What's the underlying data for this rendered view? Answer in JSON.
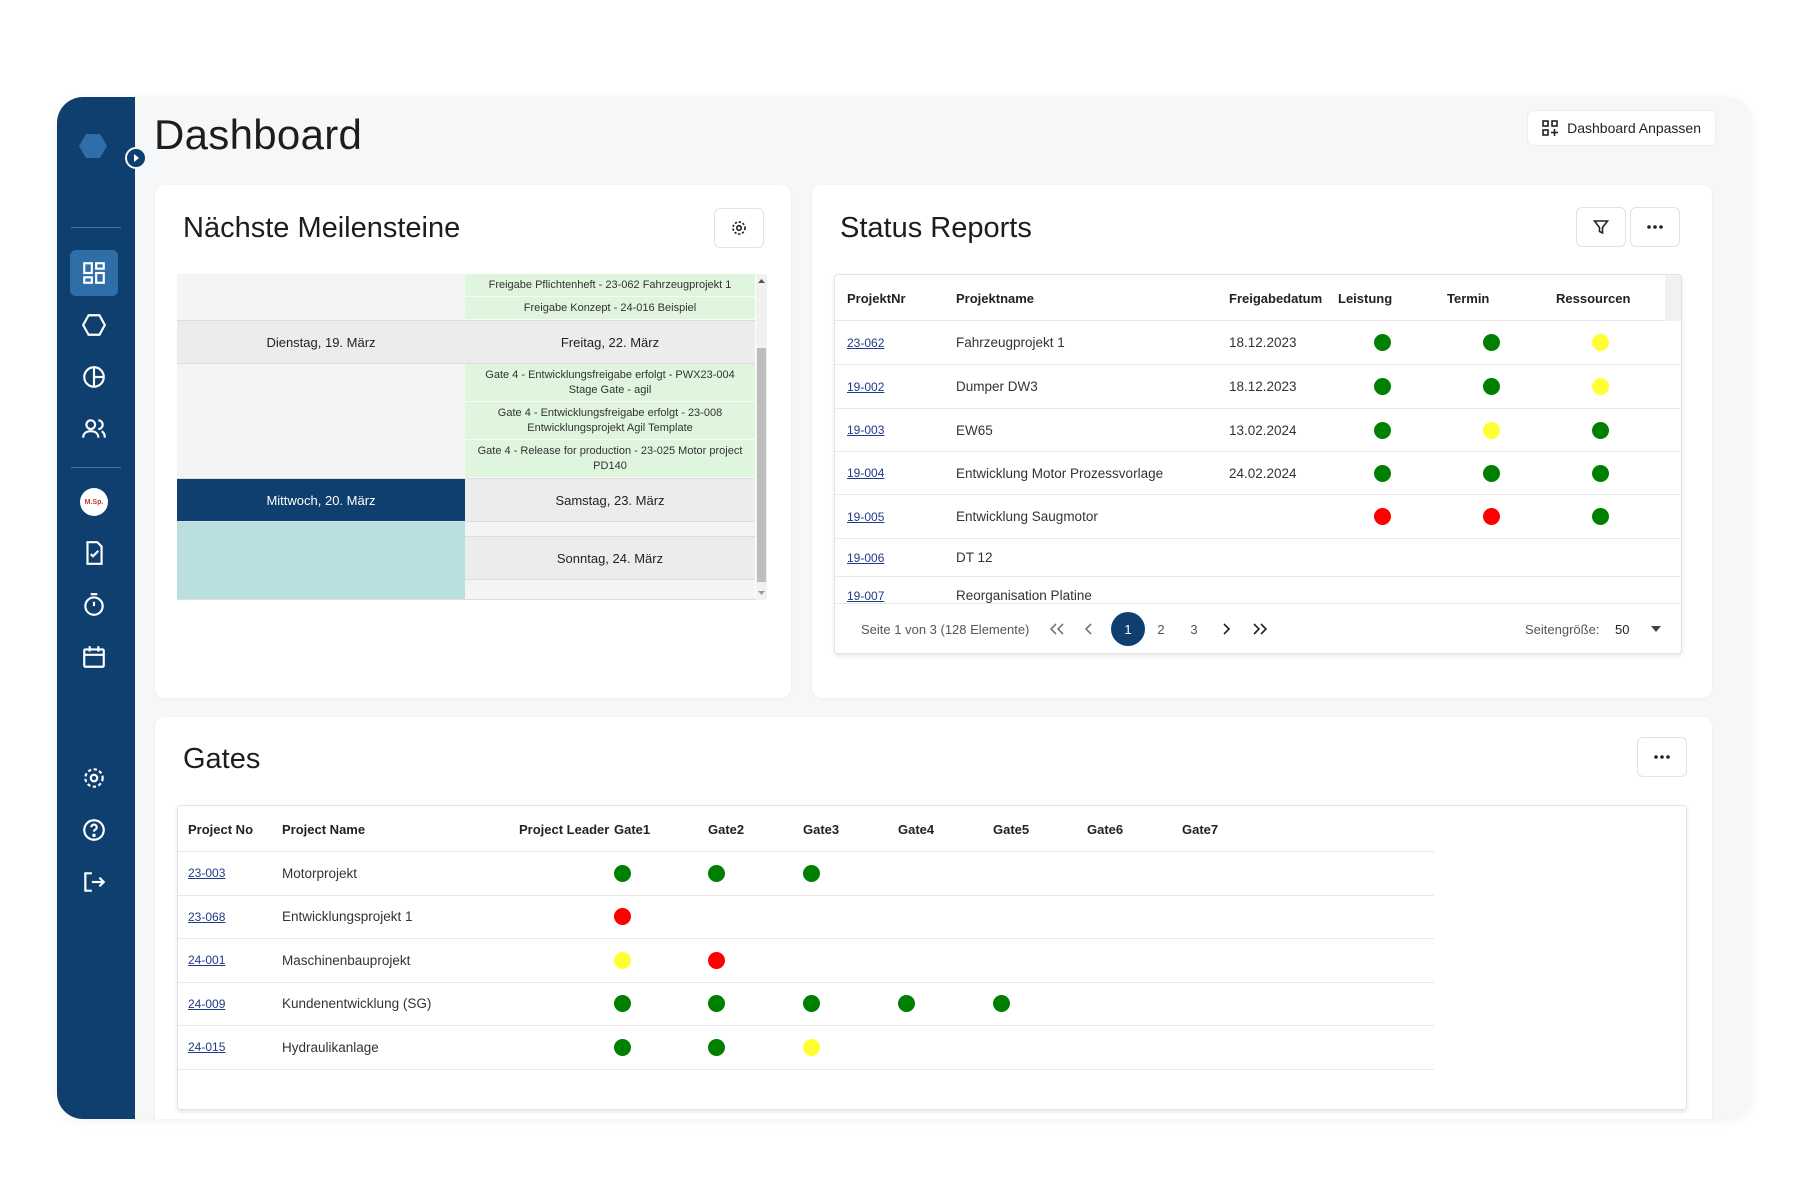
{
  "colors": {
    "green": "#008000",
    "red": "#ff0000",
    "yellow": "#ffff33",
    "navy": "#0e3f6f"
  },
  "header": {
    "title": "Dashboard",
    "customize_label": "Dashboard Anpassen"
  },
  "sidebar": {
    "items": [
      {
        "icon": "dashboard-icon",
        "active": true
      },
      {
        "icon": "hexagon-icon"
      },
      {
        "icon": "pie-chart-icon"
      },
      {
        "icon": "users-icon"
      },
      {
        "icon": "avatar"
      },
      {
        "icon": "document-check-icon"
      },
      {
        "icon": "stopwatch-icon"
      },
      {
        "icon": "calendar-icon"
      },
      {
        "icon": "gear-icon"
      },
      {
        "icon": "help-icon"
      },
      {
        "icon": "logout-icon"
      }
    ],
    "avatar_text": "M.Sp."
  },
  "milestones": {
    "title": "Nächste Meilensteine",
    "top_events": [
      "Freigabe Pflichtenheft - 23-062 Fahrzeugprojekt 1",
      "Freigabe Konzept - 24-016 Beispiel"
    ],
    "days": {
      "tue": "Dienstag, 19. März",
      "fri": "Freitag, 22. März",
      "wed": "Mittwoch, 20. März",
      "sat": "Samstag, 23. März",
      "sun": "Sonntag, 24. März"
    },
    "fri_events": [
      "Gate 4 - Entwicklungsfreigabe erfolgt - PWX23-004 Stage Gate - agil",
      "Gate 4 - Entwicklungsfreigabe erfolgt - 23-008 Entwicklungsprojekt Agil Template",
      "Gate 4 - Release for production - 23-025 Motor project PD140"
    ]
  },
  "status_reports": {
    "title": "Status Reports",
    "columns": [
      "ProjektNr",
      "Projektname",
      "Freigabedatum",
      "Leistung",
      "Termin",
      "Ressourcen"
    ],
    "rows": [
      {
        "nr": "23-062",
        "name": "Fahrzeugprojekt 1",
        "date": "18.12.2023",
        "leistung": "green",
        "termin": "green",
        "ressourcen": "yellow"
      },
      {
        "nr": "19-002",
        "name": "Dumper DW3",
        "date": "18.12.2023",
        "leistung": "green",
        "termin": "green",
        "ressourcen": "yellow"
      },
      {
        "nr": "19-003",
        "name": "EW65",
        "date": "13.02.2024",
        "leistung": "green",
        "termin": "yellow",
        "ressourcen": "green"
      },
      {
        "nr": "19-004",
        "name": "Entwicklung Motor Prozessvorlage",
        "date": "24.02.2024",
        "leistung": "green",
        "termin": "green",
        "ressourcen": "green"
      },
      {
        "nr": "19-005",
        "name": "Entwicklung Saugmotor",
        "date": "",
        "leistung": "red",
        "termin": "red",
        "ressourcen": "green"
      },
      {
        "nr": "19-006",
        "name": "DT 12",
        "date": "",
        "leistung": "",
        "termin": "",
        "ressourcen": ""
      },
      {
        "nr": "19-007",
        "name": "Reorganisation Platine",
        "date": "",
        "leistung": "",
        "termin": "",
        "ressourcen": ""
      }
    ],
    "pager": {
      "summary": "Seite 1 von 3 (128 Elemente)",
      "pages": [
        "1",
        "2",
        "3"
      ],
      "current": "1",
      "page_size_label": "Seitengröße:",
      "page_size": "50"
    }
  },
  "gates": {
    "title": "Gates",
    "columns": [
      "Project No",
      "Project Name",
      "Project Leader",
      "Gate1",
      "Gate2",
      "Gate3",
      "Gate4",
      "Gate5",
      "Gate6",
      "Gate7"
    ],
    "rows": [
      {
        "no": "23-003",
        "name": "Motorprojekt",
        "leader": "",
        "gates": [
          "green",
          "green",
          "green",
          "",
          "",
          "",
          ""
        ]
      },
      {
        "no": "23-068",
        "name": "Entwicklungsprojekt 1",
        "leader": "",
        "gates": [
          "red",
          "",
          "",
          "",
          "",
          "",
          ""
        ]
      },
      {
        "no": "24-001",
        "name": "Maschinenbauprojekt",
        "leader": "",
        "gates": [
          "yellow",
          "red",
          "",
          "",
          "",
          "",
          ""
        ]
      },
      {
        "no": "24-009",
        "name": "Kundenentwicklung (SG)",
        "leader": "",
        "gates": [
          "green",
          "green",
          "green",
          "green",
          "green",
          "",
          ""
        ]
      },
      {
        "no": "24-015",
        "name": "Hydraulikanlage",
        "leader": "",
        "gates": [
          "green",
          "green",
          "yellow",
          "",
          "",
          "",
          ""
        ]
      }
    ]
  }
}
